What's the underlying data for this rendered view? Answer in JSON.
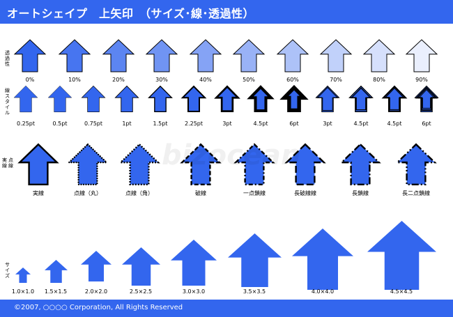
{
  "header": {
    "title": "オートシェイプ　上矢印　（サイズ･線･透過性）"
  },
  "footer": {
    "copyright": "©2007, ○○○○ Corporation, All Rights Reserved"
  },
  "colors": {
    "header_bg": "#3366ee",
    "arrow_fill": "#3366ee",
    "arrow_stroke": "#000000"
  },
  "row1": {
    "label": "透過性",
    "items": [
      {
        "label": "0%",
        "transparency": 0
      },
      {
        "label": "10%",
        "transparency": 10
      },
      {
        "label": "20%",
        "transparency": 20
      },
      {
        "label": "30%",
        "transparency": 30
      },
      {
        "label": "40%",
        "transparency": 40
      },
      {
        "label": "50%",
        "transparency": 50
      },
      {
        "label": "60%",
        "transparency": 60
      },
      {
        "label": "70%",
        "transparency": 70
      },
      {
        "label": "80%",
        "transparency": 80
      },
      {
        "label": "90%",
        "transparency": 90
      }
    ]
  },
  "row2": {
    "label": "線スタイル",
    "items": [
      {
        "label": "0.25pt",
        "weight": 0.25,
        "style": "single"
      },
      {
        "label": "0.5pt",
        "weight": 0.5,
        "style": "single"
      },
      {
        "label": "0.75pt",
        "weight": 0.75,
        "style": "single"
      },
      {
        "label": "1pt",
        "weight": 1,
        "style": "single"
      },
      {
        "label": "1.5pt",
        "weight": 1.5,
        "style": "single"
      },
      {
        "label": "2.25pt",
        "weight": 2.25,
        "style": "single"
      },
      {
        "label": "3pt",
        "weight": 3,
        "style": "single"
      },
      {
        "label": "4.5pt",
        "weight": 4.5,
        "style": "single"
      },
      {
        "label": "6pt",
        "weight": 6,
        "style": "single"
      },
      {
        "label": "3pt",
        "weight": 3,
        "style": "double"
      },
      {
        "label": "4.5pt",
        "weight": 4.5,
        "style": "double"
      },
      {
        "label": "4.5pt",
        "weight": 4.5,
        "style": "thick-thin"
      },
      {
        "label": "6pt",
        "weight": 6,
        "style": "triple"
      }
    ]
  },
  "row3": {
    "label_a": "実線",
    "label_b": "点線",
    "items": [
      {
        "label": "実線",
        "dash": "solid"
      },
      {
        "label": "点線（丸）",
        "dash": "round-dot"
      },
      {
        "label": "点線（角）",
        "dash": "square-dot"
      },
      {
        "label": "破線",
        "dash": "dash"
      },
      {
        "label": "一点鎖線",
        "dash": "dash-dot"
      },
      {
        "label": "長破線線",
        "dash": "long-dash"
      },
      {
        "label": "長鎖線",
        "dash": "long-dash-dot"
      },
      {
        "label": "長二点鎖線",
        "dash": "long-dash-dot-dot"
      }
    ]
  },
  "row4": {
    "label": "サイズ",
    "items": [
      {
        "label": "1.0×1.0",
        "scale": 1.0
      },
      {
        "label": "1.5×1.5",
        "scale": 1.5
      },
      {
        "label": "2.0×2.0",
        "scale": 2.0
      },
      {
        "label": "2.5×2.5",
        "scale": 2.5
      },
      {
        "label": "3.0×3.0",
        "scale": 3.0
      },
      {
        "label": "3.5×3.5",
        "scale": 3.5
      },
      {
        "label": "4.0×4.0",
        "scale": 4.0
      },
      {
        "label": "4.5×4.5",
        "scale": 4.5
      }
    ]
  }
}
